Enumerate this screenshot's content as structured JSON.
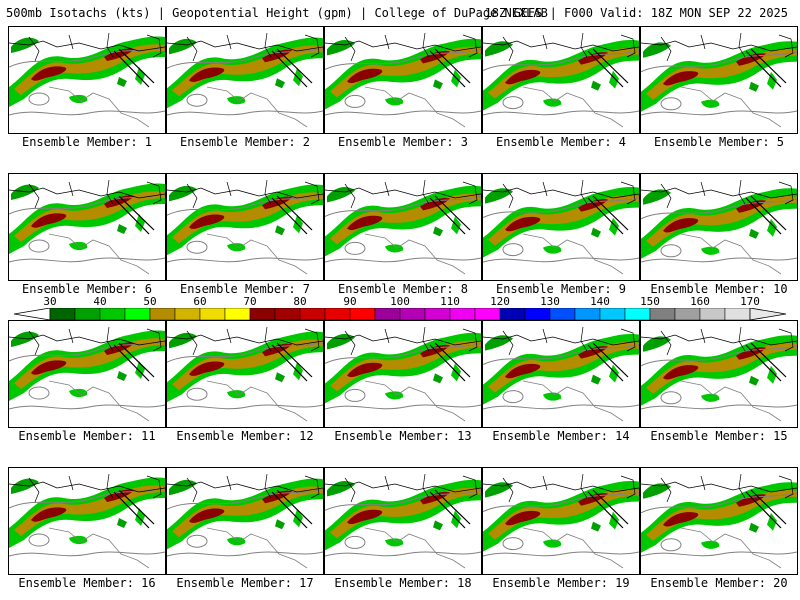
{
  "header": {
    "title": "500mb Isotachs (kts) | Geopotential Height (gpm) | College of DuPage NEXLAB",
    "run_info": "18Z GEFS | F000 Valid: 18Z MON SEP 22 2025"
  },
  "members": [
    "Ensemble Member: 1",
    "Ensemble Member: 2",
    "Ensemble Member: 3",
    "Ensemble Member: 4",
    "Ensemble Member: 5",
    "Ensemble Member: 6",
    "Ensemble Member: 7",
    "Ensemble Member: 8",
    "Ensemble Member: 9",
    "Ensemble Member: 10",
    "Ensemble Member: 11",
    "Ensemble Member: 12",
    "Ensemble Member: 13",
    "Ensemble Member: 14",
    "Ensemble Member: 15",
    "Ensemble Member: 16",
    "Ensemble Member: 17",
    "Ensemble Member: 18",
    "Ensemble Member: 19",
    "Ensemble Member: 20"
  ],
  "colorbar": {
    "labels": [
      "30",
      "40",
      "50",
      "60",
      "70",
      "80",
      "90",
      "100",
      "110",
      "120",
      "130",
      "140",
      "150",
      "160",
      "170"
    ],
    "colors": [
      "#006400",
      "#00a000",
      "#00c800",
      "#00ff00",
      "#b48c00",
      "#d2b400",
      "#f0dc00",
      "#ffff00",
      "#8b0000",
      "#a00000",
      "#c80000",
      "#e60000",
      "#ff0000",
      "#9b009b",
      "#b400b4",
      "#d200d2",
      "#f000f0",
      "#ff00ff",
      "#0000b4",
      "#0000ff",
      "#0050ff",
      "#0096ff",
      "#00c8ff",
      "#00ffff",
      "#808080",
      "#a0a0a0",
      "#c8c8c8",
      "#e0e0e0"
    ]
  }
}
